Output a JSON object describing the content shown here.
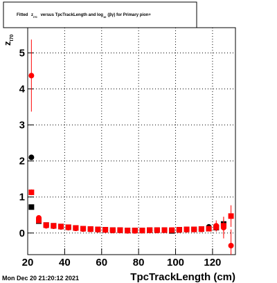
{
  "chart_data": {
    "type": "scatter",
    "title_parts": [
      "Fitted",
      "z",
      "I70",
      "versus TpcTrackLength and log",
      "10",
      "(βγ) for Primary pion+"
    ],
    "xlabel": "TpcTrackLength (cm)",
    "ylabel_parts": [
      "z",
      "I70"
    ],
    "timestamp": "Mon Dec 20 21:20:12 2021",
    "x": [
      22,
      26,
      30,
      34,
      38,
      42,
      46,
      50,
      54,
      58,
      62,
      66,
      70,
      74,
      78,
      82,
      86,
      90,
      94,
      98,
      102,
      106,
      110,
      114,
      118,
      122,
      126,
      130
    ],
    "series": [
      {
        "name": "black-circle",
        "color": "#000000",
        "marker": "circle",
        "values": [
          2.1,
          0.38,
          0.21,
          0.19,
          0.17,
          0.15,
          0.13,
          0.11,
          0.1,
          0.09,
          0.08,
          0.07,
          0.07,
          0.06,
          0.06,
          0.07,
          0.07,
          0.07,
          0.08,
          0.07,
          0.08,
          0.09,
          0.1,
          0.1,
          0.17,
          0.18,
          0.22,
          null
        ],
        "errors": [
          0.05,
          0.03,
          0.02,
          0.02,
          0.02,
          0.02,
          0.02,
          0.02,
          0.02,
          0.02,
          0.02,
          0.02,
          0.02,
          0.02,
          0.02,
          0.02,
          0.02,
          0.02,
          0.02,
          0.02,
          0.02,
          0.02,
          0.03,
          0.03,
          0.05,
          0.08,
          0.1,
          null
        ]
      },
      {
        "name": "black-square",
        "color": "#000000",
        "marker": "square",
        "values": [
          0.72,
          0.33,
          0.22,
          0.2,
          0.18,
          0.16,
          0.14,
          0.12,
          0.11,
          0.1,
          0.09,
          0.08,
          0.08,
          0.07,
          0.07,
          0.07,
          0.08,
          0.08,
          0.08,
          0.06,
          0.09,
          0.1,
          0.1,
          0.11,
          0.12,
          0.15,
          0.25,
          null
        ],
        "errors": [
          0.04,
          0.03,
          0.02,
          0.02,
          0.02,
          0.02,
          0.02,
          0.02,
          0.02,
          0.02,
          0.02,
          0.02,
          0.02,
          0.02,
          0.02,
          0.02,
          0.02,
          0.02,
          0.02,
          0.02,
          0.02,
          0.02,
          0.03,
          0.03,
          0.05,
          0.08,
          0.1,
          null
        ]
      },
      {
        "name": "red-square",
        "color": "#ff0000",
        "marker": "square",
        "values": [
          1.13,
          0.35,
          0.22,
          0.2,
          0.18,
          0.16,
          0.14,
          0.12,
          0.11,
          0.1,
          0.09,
          0.08,
          0.08,
          0.07,
          0.07,
          0.07,
          0.08,
          0.08,
          0.08,
          0.08,
          0.09,
          0.1,
          0.1,
          0.11,
          0.12,
          0.16,
          0.2,
          0.47
        ],
        "errors": [
          0.08,
          0.04,
          0.02,
          0.02,
          0.02,
          0.02,
          0.02,
          0.02,
          0.02,
          0.02,
          0.02,
          0.02,
          0.02,
          0.02,
          0.02,
          0.02,
          0.02,
          0.02,
          0.02,
          0.02,
          0.02,
          0.03,
          0.03,
          0.04,
          0.06,
          0.12,
          0.25,
          0.3
        ]
      },
      {
        "name": "red-circle",
        "color": "#ff0000",
        "marker": "circle",
        "values": [
          4.37,
          0.42,
          0.2,
          0.19,
          0.17,
          0.15,
          0.13,
          0.11,
          0.1,
          0.09,
          0.08,
          0.07,
          0.07,
          0.06,
          0.06,
          0.07,
          0.07,
          0.07,
          0.08,
          0.08,
          0.08,
          0.09,
          0.1,
          0.1,
          0.12,
          0.2,
          0.15,
          -0.35
        ],
        "errors": [
          1.0,
          0.06,
          0.02,
          0.02,
          0.02,
          0.02,
          0.02,
          0.02,
          0.02,
          0.02,
          0.02,
          0.02,
          0.02,
          0.02,
          0.02,
          0.02,
          0.02,
          0.02,
          0.02,
          0.02,
          0.02,
          0.03,
          0.03,
          0.04,
          0.06,
          0.15,
          0.3,
          0.45
        ]
      }
    ],
    "xlim": [
      20,
      132.4
    ],
    "ylim": [
      -0.6,
      5.7
    ],
    "xticks": [
      20,
      40,
      60,
      80,
      100,
      120
    ],
    "yticks": [
      0,
      1,
      2,
      3,
      4,
      5
    ],
    "grid": true
  }
}
